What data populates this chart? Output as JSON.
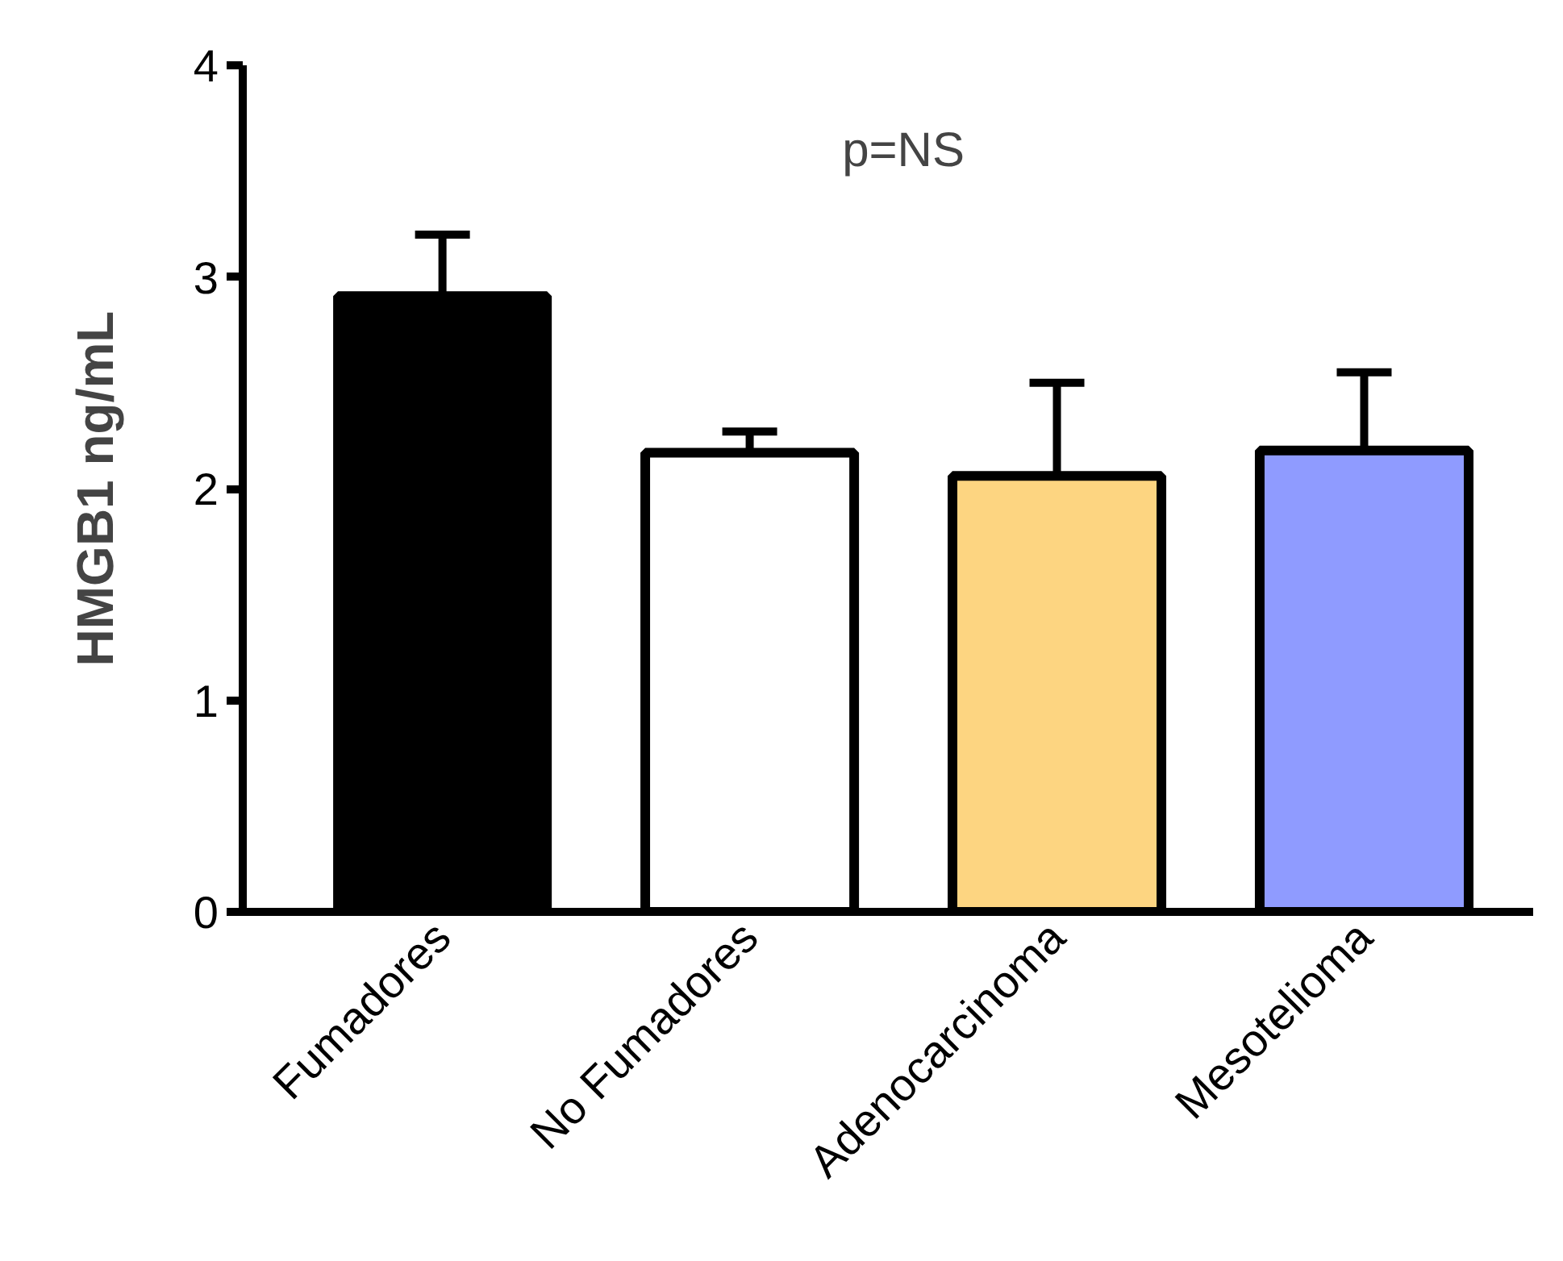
{
  "chart_data": {
    "type": "bar",
    "ylabel": "HMGB1 ng/mL",
    "categories": [
      "Fumadores",
      "No Fumadores",
      "Adenocarcinoma",
      "Mesotelioma"
    ],
    "values": [
      2.91,
      2.17,
      2.06,
      2.18
    ],
    "errors": [
      [
        2.91,
        3.2
      ],
      [
        2.17,
        2.27
      ],
      [
        2.06,
        2.5
      ],
      [
        2.18,
        2.55
      ]
    ],
    "colors": [
      "#000000",
      "#ffffff",
      "#fdd581",
      "#8f9bff"
    ],
    "ylim": [
      0,
      4
    ],
    "yticks": [
      0,
      1,
      2,
      3,
      4
    ],
    "grid": false,
    "annotations": [
      "p=NS"
    ]
  }
}
